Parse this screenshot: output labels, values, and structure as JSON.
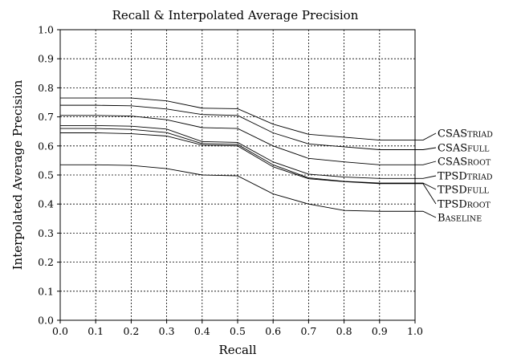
{
  "chart_data": {
    "type": "line",
    "title": "Recall & Interpolated Average Precision",
    "xlabel": "Recall",
    "ylabel": "Interpolated Average Precision",
    "x": [
      0.0,
      0.1,
      0.2,
      0.3,
      0.4,
      0.5,
      0.6,
      0.7,
      0.8,
      0.9,
      1.0
    ],
    "xlim": [
      0.0,
      1.0
    ],
    "ylim": [
      0.0,
      1.0
    ],
    "x_ticks": [
      "0.0",
      "0.1",
      "0.2",
      "0.3",
      "0.4",
      "0.5",
      "0.6",
      "0.7",
      "0.8",
      "0.9",
      "1.0"
    ],
    "y_ticks": [
      "0.0",
      "0.1",
      "0.2",
      "0.3",
      "0.4",
      "0.5",
      "0.6",
      "0.7",
      "0.8",
      "0.9",
      "1.0"
    ],
    "grid": true,
    "legend": "right, labels at line ends",
    "series": [
      {
        "name": "CSAS",
        "suffix": "TRIAD",
        "values": [
          0.765,
          0.765,
          0.765,
          0.755,
          0.73,
          0.728,
          0.675,
          0.64,
          0.63,
          0.62,
          0.62
        ]
      },
      {
        "name": "CSAS",
        "suffix": "FULL",
        "values": [
          0.74,
          0.74,
          0.738,
          0.727,
          0.708,
          0.705,
          0.645,
          0.607,
          0.597,
          0.587,
          0.587
        ]
      },
      {
        "name": "CSAS",
        "suffix": "ROOT",
        "values": [
          0.705,
          0.705,
          0.703,
          0.69,
          0.663,
          0.66,
          0.6,
          0.557,
          0.545,
          0.535,
          0.535
        ]
      },
      {
        "name": "TPSD",
        "suffix": "TRIAD",
        "values": [
          0.67,
          0.67,
          0.668,
          0.658,
          0.615,
          0.612,
          0.545,
          0.503,
          0.493,
          0.488,
          0.488
        ]
      },
      {
        "name": "TPSD",
        "suffix": "FULL",
        "values": [
          0.66,
          0.66,
          0.657,
          0.646,
          0.608,
          0.605,
          0.535,
          0.49,
          0.478,
          0.472,
          0.472
        ]
      },
      {
        "name": "TPSD",
        "suffix": "ROOT",
        "values": [
          0.645,
          0.645,
          0.642,
          0.634,
          0.603,
          0.6,
          0.528,
          0.487,
          0.477,
          0.47,
          0.47
        ]
      },
      {
        "name": "B",
        "suffix": "ASELINE",
        "values": [
          0.535,
          0.535,
          0.533,
          0.522,
          0.5,
          0.497,
          0.435,
          0.4,
          0.378,
          0.375,
          0.375
        ]
      }
    ]
  }
}
